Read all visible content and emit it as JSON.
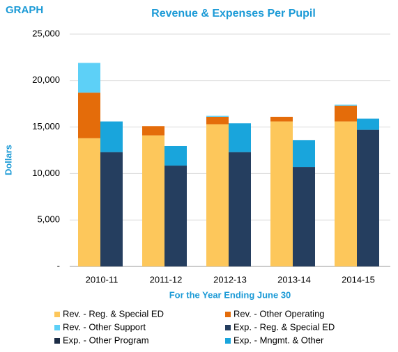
{
  "page_label": "GRAPH",
  "chart_data": {
    "type": "stacked-grouped-bar",
    "title": "Revenue & Expenses Per Pupil",
    "ylabel": "Dollars",
    "xlabel": "For the Year Ending June 30",
    "categories": [
      "2010-11",
      "2011-12",
      "2012-13",
      "2013-14",
      "2014-15"
    ],
    "ylim": [
      0,
      25000
    ],
    "yticks": [
      {
        "value": 0,
        "label": "-"
      },
      {
        "value": 5000,
        "label": "5,000"
      },
      {
        "value": 10000,
        "label": "10,000"
      },
      {
        "value": 15000,
        "label": "15,000"
      },
      {
        "value": 20000,
        "label": "20,000"
      },
      {
        "value": 25000,
        "label": "25,000"
      }
    ],
    "series": [
      {
        "name": "Rev. - Reg. & Special ED",
        "color": "#fdc75b",
        "group": 0,
        "values": [
          13800,
          14100,
          15300,
          15600,
          15600
        ]
      },
      {
        "name": "Rev. - Other Operating",
        "color": "#e46c0a",
        "group": 0,
        "values": [
          4900,
          1000,
          800,
          500,
          1700
        ]
      },
      {
        "name": "Rev. - Other Support",
        "color": "#5dd0f7",
        "group": 0,
        "values": [
          3200,
          0,
          100,
          0,
          100
        ]
      },
      {
        "name": "Exp. - Reg. & Special ED",
        "color": "#253e5f",
        "group": 1,
        "values": [
          12300,
          10850,
          12300,
          10700,
          14700
        ]
      },
      {
        "name": "Exp. - Other Program",
        "color": "#1c2c45",
        "group": 1,
        "values": [
          0,
          0,
          0,
          0,
          0
        ]
      },
      {
        "name": "Exp. - Mngmt. & Other",
        "color": "#19a5dc",
        "group": 1,
        "values": [
          3300,
          2100,
          3100,
          2900,
          1200
        ]
      }
    ]
  }
}
